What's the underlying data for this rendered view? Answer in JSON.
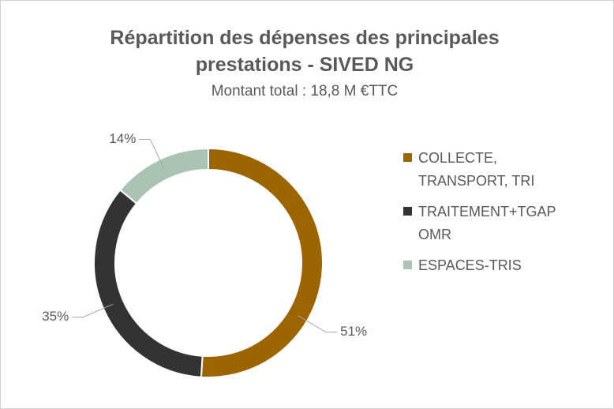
{
  "chart_data": {
    "type": "donut",
    "title": "Répartition des dépenses des principales prestations - SIVED NG",
    "subtitle": "Montant total : 18,8 M €TTC",
    "categories": [
      "COLLECTE, TRANSPORT, TRI",
      "TRAITEMENT+TGAP OMR",
      "ESPACES-TRIS"
    ],
    "values": [
      51,
      35,
      14
    ],
    "value_labels": [
      "51%",
      "35%",
      "14%"
    ],
    "colors": [
      "#9c6500",
      "#333333",
      "#a9c4b4"
    ],
    "legend": "right"
  }
}
